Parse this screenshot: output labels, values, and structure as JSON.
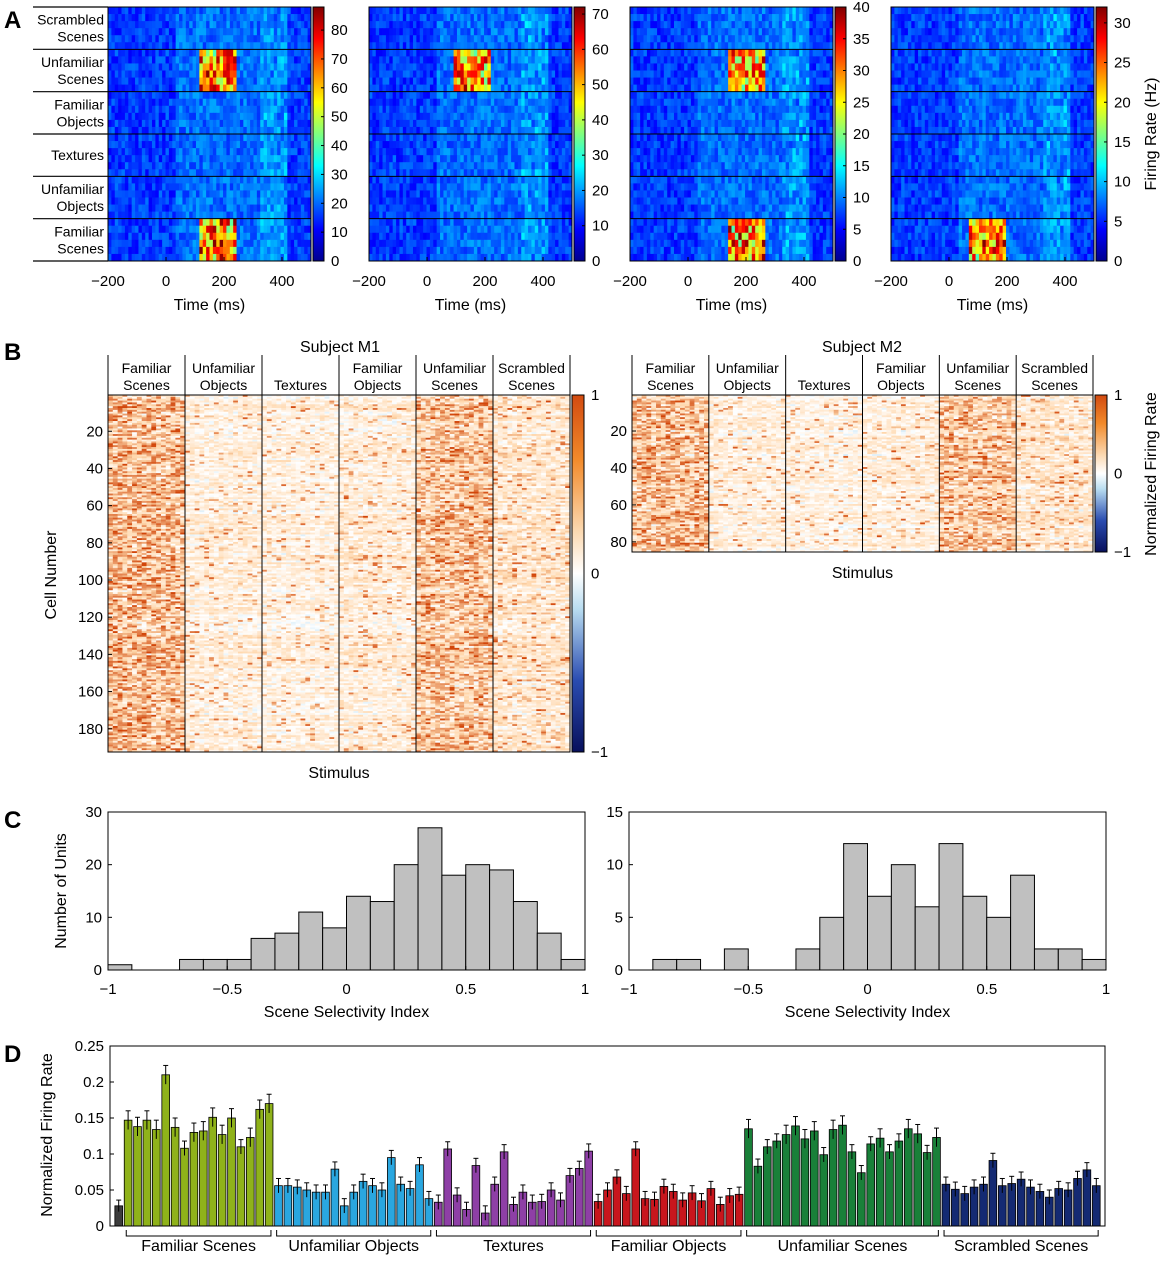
{
  "panels": {
    "A": "A",
    "B": "B",
    "C": "C",
    "D": "D"
  },
  "categories": [
    "Familiar Scenes",
    "Unfamiliar Objects",
    "Textures",
    "Familiar Objects",
    "Unfamiliar Scenes",
    "Scrambled Scenes"
  ],
  "chart_data": [
    {
      "panel": "A",
      "type": "heatmap",
      "description_rows_top_to_bottom": [
        "Scrambled\nScenes",
        "Unfamiliar\nScenes",
        "Familiar\nObjects",
        "Textures",
        "Unfamiliar\nObjects",
        "Familiar\nScenes"
      ],
      "row_labels": [
        [
          "Scrambled",
          "Scenes"
        ],
        [
          "Unfamiliar",
          "Scenes"
        ],
        [
          "Familiar",
          "Objects"
        ],
        [
          "Textures"
        ],
        [
          "Unfamiliar",
          "Objects"
        ],
        [
          "Familiar",
          "Scenes"
        ]
      ],
      "xlabel": "Time (ms)",
      "xlim": [
        -200,
        500
      ],
      "xticks": [
        -200,
        0,
        200,
        400
      ],
      "xtick_labels": [
        "−200",
        "0",
        "200",
        "400"
      ],
      "colorbar_label": "Firing Rate (Hz)",
      "cells": [
        {
          "cmax": 88,
          "cticks": [
            0,
            10,
            20,
            30,
            40,
            50,
            60,
            70,
            80
          ]
        },
        {
          "cmax": 72,
          "cticks": [
            0,
            10,
            20,
            30,
            40,
            50,
            60,
            70
          ]
        },
        {
          "cmax": 40,
          "cticks": [
            0,
            5,
            10,
            15,
            20,
            25,
            30,
            35,
            40
          ]
        },
        {
          "cmax": 32,
          "cticks": [
            0,
            5,
            10,
            15,
            20,
            25,
            30
          ]
        }
      ]
    },
    {
      "panel": "B",
      "type": "heatmap",
      "ylabel": "Cell Number",
      "xlabel": "Stimulus",
      "colorbar_label": "Normalized Firing Rate",
      "colorbar_ticks": [
        -1,
        0,
        1
      ],
      "colorbar_tick_labels": [
        "−1",
        "0",
        "1"
      ],
      "column_labels": [
        [
          "Familiar",
          "Scenes"
        ],
        [
          "Unfamiliar",
          "Objects"
        ],
        [
          "Textures"
        ],
        [
          "Familiar",
          "Objects"
        ],
        [
          "Unfamiliar",
          "Scenes"
        ],
        [
          "Scrambled",
          "Scenes"
        ]
      ],
      "subjects": [
        {
          "title": "Subject M1",
          "n_cells": 192,
          "yticks": [
            20,
            40,
            60,
            80,
            100,
            120,
            140,
            160,
            180
          ]
        },
        {
          "title": "Subject M2",
          "n_cells": 85,
          "yticks": [
            20,
            40,
            60,
            80
          ]
        }
      ]
    },
    {
      "panel": "C",
      "type": "bar",
      "ylabel": "Number of Units",
      "xlabel": "Scene Selectivity Index",
      "xlim": [
        -1,
        1
      ],
      "xticks": [
        -1,
        -0.5,
        0,
        0.5,
        1
      ],
      "xtick_labels": [
        "−1",
        "−0.5",
        "0",
        "0.5",
        "1"
      ],
      "bin_edges": [
        -1,
        -0.9,
        -0.8,
        -0.7,
        -0.6,
        -0.5,
        -0.4,
        -0.3,
        -0.2,
        -0.1,
        0,
        0.1,
        0.2,
        0.3,
        0.4,
        0.5,
        0.6,
        0.7,
        0.8,
        0.9,
        1
      ],
      "histograms": [
        {
          "subject": "M1",
          "ylim": [
            0,
            30
          ],
          "yticks": [
            0,
            10,
            20,
            30
          ],
          "counts": [
            1,
            0,
            0,
            2,
            2,
            2,
            6,
            7,
            11,
            8,
            14,
            13,
            20,
            27,
            18,
            20,
            19,
            13,
            7,
            2
          ]
        },
        {
          "subject": "M2",
          "ylim": [
            0,
            15
          ],
          "yticks": [
            0,
            5,
            10,
            15
          ],
          "counts": [
            0,
            1,
            1,
            0,
            2,
            0,
            0,
            2,
            5,
            12,
            7,
            10,
            6,
            12,
            7,
            5,
            9,
            2,
            2,
            1
          ]
        }
      ]
    },
    {
      "panel": "D",
      "type": "bar",
      "ylabel": "Normalized Firing Rate",
      "ylim": [
        0,
        0.25
      ],
      "yticks": [
        0,
        0.05,
        0.1,
        0.15,
        0.2,
        0.25
      ],
      "ytick_labels": [
        "0",
        "0.05",
        "0.1",
        "0.15",
        "0.2",
        "0.25"
      ],
      "first_bar": {
        "value": 0.028,
        "err": 0.008,
        "color": "#3c3c3c"
      },
      "groups": [
        {
          "name": "Familiar Scenes",
          "color": "#8fb21a",
          "values": [
            0.147,
            0.138,
            0.147,
            0.134,
            0.21,
            0.137,
            0.108,
            0.13,
            0.132,
            0.151,
            0.127,
            0.15,
            0.11,
            0.123,
            0.162,
            0.17
          ]
        },
        {
          "name": "Unfamiliar Objects",
          "color": "#2aa7e0",
          "values": [
            0.056,
            0.056,
            0.054,
            0.05,
            0.047,
            0.047,
            0.079,
            0.028,
            0.047,
            0.062,
            0.056,
            0.05,
            0.095,
            0.058,
            0.052,
            0.085,
            0.038
          ]
        },
        {
          "name": "Textures",
          "color": "#8e3fa6",
          "values": [
            0.033,
            0.107,
            0.043,
            0.023,
            0.084,
            0.018,
            0.058,
            0.103,
            0.03,
            0.047,
            0.033,
            0.034,
            0.05,
            0.036,
            0.07,
            0.08,
            0.104
          ]
        },
        {
          "name": "Familiar Objects",
          "color": "#c8161d",
          "values": [
            0.034,
            0.05,
            0.068,
            0.045,
            0.107,
            0.038,
            0.037,
            0.055,
            0.048,
            0.036,
            0.046,
            0.035,
            0.052,
            0.03,
            0.042,
            0.044
          ]
        },
        {
          "name": "Unfamiliar Scenes",
          "color": "#198039",
          "values": [
            0.135,
            0.083,
            0.11,
            0.118,
            0.127,
            0.139,
            0.121,
            0.132,
            0.099,
            0.134,
            0.14,
            0.103,
            0.074,
            0.114,
            0.122,
            0.103,
            0.118,
            0.135,
            0.128,
            0.102,
            0.123
          ]
        },
        {
          "name": "Scrambled Scenes",
          "color": "#142a73",
          "values": [
            0.058,
            0.051,
            0.045,
            0.054,
            0.058,
            0.091,
            0.056,
            0.059,
            0.065,
            0.054,
            0.048,
            0.04,
            0.052,
            0.05,
            0.066,
            0.078,
            0.056
          ]
        }
      ]
    }
  ]
}
